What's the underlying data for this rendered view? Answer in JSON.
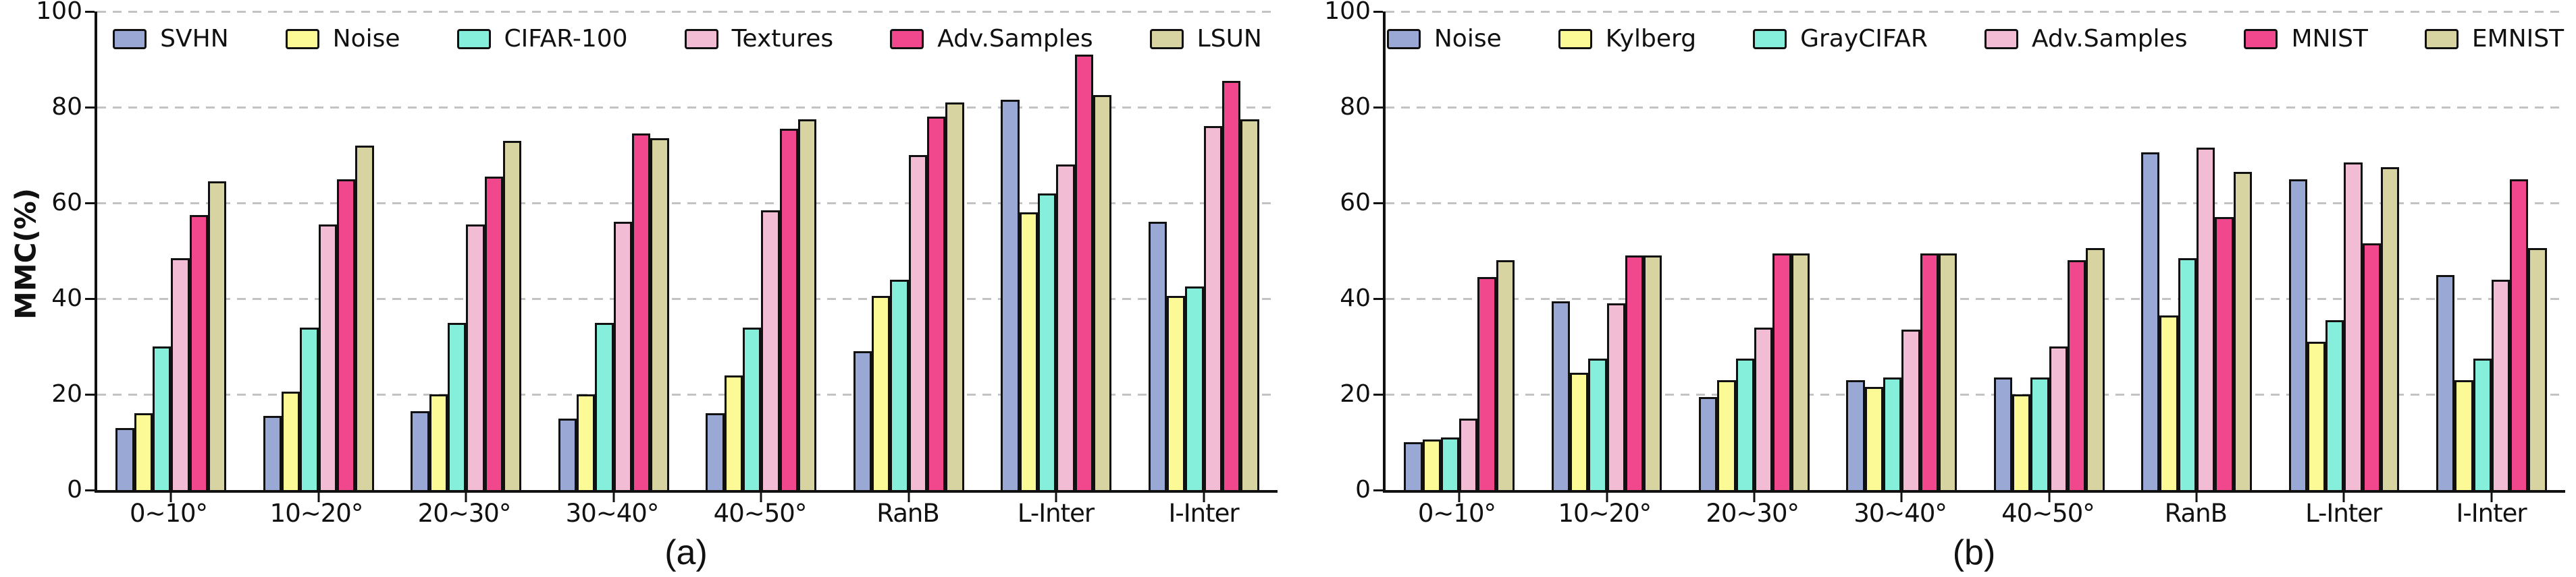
{
  "figure": {
    "background": "#ffffff",
    "grid_color": "#c3c3c3",
    "axis_color": "#111111"
  },
  "chart_data": [
    {
      "type": "bar",
      "caption": "(a)",
      "ylabel": "MMC(%)",
      "ylim": [
        0,
        100
      ],
      "yticks": [
        0,
        20,
        40,
        60,
        80,
        100
      ],
      "grid": "horizontal dashed at yticks",
      "legend_position": "top-inside-horizontal",
      "categories": [
        "0~10°",
        "10~20°",
        "20~30°",
        "30~40°",
        "40~50°",
        "RanB",
        "L-Inter",
        "I-Inter"
      ],
      "series": [
        {
          "name": "SVHN",
          "color": "#9aa8d6",
          "values": [
            13,
            15.5,
            16.5,
            15,
            16,
            29,
            81.5,
            56
          ]
        },
        {
          "name": "Noise",
          "color": "#fbfa96",
          "values": [
            16,
            20.5,
            20,
            20,
            24,
            40.5,
            58,
            40.5
          ]
        },
        {
          "name": "CIFAR-100",
          "color": "#86efdc",
          "values": [
            30,
            34,
            35,
            35,
            34,
            44,
            62,
            42.5
          ]
        },
        {
          "name": "Textures",
          "color": "#f3bcd5",
          "values": [
            48.5,
            55.5,
            55.5,
            56,
            58.5,
            70,
            68,
            76
          ]
        },
        {
          "name": "Adv.Samples",
          "color": "#f0478d",
          "values": [
            57.5,
            65,
            65.5,
            74.5,
            75.5,
            78,
            91,
            85.5
          ]
        },
        {
          "name": "LSUN",
          "color": "#d7d4a1",
          "values": [
            64.5,
            72,
            73,
            73.5,
            77.5,
            81,
            82.5,
            77.5
          ]
        }
      ]
    },
    {
      "type": "bar",
      "caption": "(b)",
      "ylabel": "",
      "ylim": [
        0,
        100
      ],
      "yticks": [
        0,
        20,
        40,
        60,
        80,
        100
      ],
      "grid": "horizontal dashed at yticks",
      "legend_position": "top-inside-horizontal",
      "categories": [
        "0~10°",
        "10~20°",
        "20~30°",
        "30~40°",
        "40~50°",
        "RanB",
        "L-Inter",
        "I-Inter"
      ],
      "series": [
        {
          "name": "Noise",
          "color": "#9aa8d6",
          "values": [
            10,
            39.5,
            19.5,
            23,
            23.5,
            70.5,
            65,
            45
          ]
        },
        {
          "name": "Kylberg",
          "color": "#fbfa96",
          "values": [
            10.5,
            24.5,
            23,
            21.5,
            20,
            36.5,
            31,
            23
          ]
        },
        {
          "name": "GrayCIFAR",
          "color": "#86efdc",
          "values": [
            11,
            27.5,
            27.5,
            23.5,
            23.5,
            48.5,
            35.5,
            27.5
          ]
        },
        {
          "name": "Adv.Samples",
          "color": "#f3bcd5",
          "values": [
            15,
            39,
            34,
            33.5,
            30,
            71.5,
            68.5,
            44
          ]
        },
        {
          "name": "MNIST",
          "color": "#f0478d",
          "values": [
            44.5,
            49,
            49.5,
            49.5,
            48,
            57,
            51.5,
            65
          ]
        },
        {
          "name": "EMNIST",
          "color": "#d7d4a1",
          "values": [
            48,
            49,
            49.5,
            49.5,
            50.5,
            66.5,
            67.5,
            50.5
          ]
        }
      ]
    }
  ]
}
